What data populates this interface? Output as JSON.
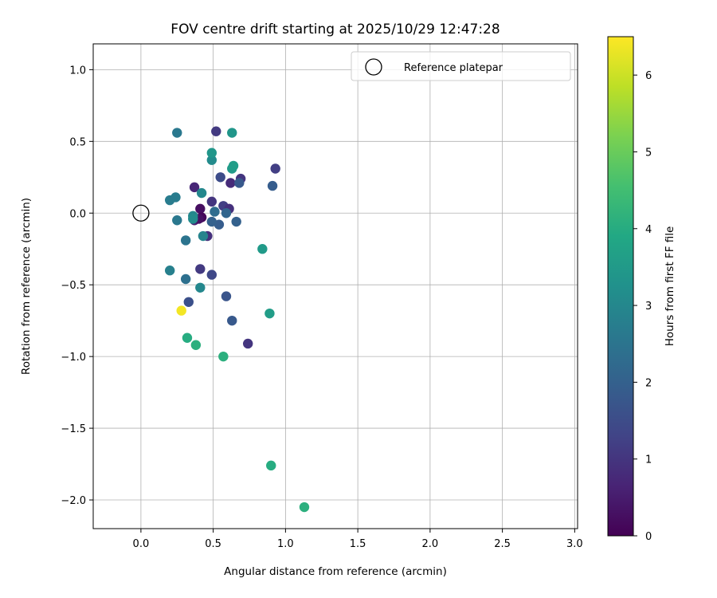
{
  "chart_data": {
    "type": "scatter",
    "title": "FOV centre drift starting at 2025/10/29 12:47:28",
    "xlabel": "Angular distance from reference (arcmin)",
    "ylabel": "Rotation from reference (arcmin)",
    "xlim": [
      -0.33,
      3.02
    ],
    "ylim": [
      -2.2,
      1.18
    ],
    "xticks": [
      0.0,
      0.5,
      1.0,
      1.5,
      2.0,
      2.5,
      3.0
    ],
    "xtick_labels": [
      "0.0",
      "0.5",
      "1.0",
      "1.5",
      "2.0",
      "2.5",
      "3.0"
    ],
    "yticks": [
      1.0,
      0.5,
      0.0,
      -0.5,
      -1.0,
      -1.5,
      -2.0
    ],
    "ytick_labels": [
      "1.0",
      "0.5",
      "0.0",
      "−0.5",
      "−1.0",
      "−1.5",
      "−2.0"
    ],
    "grid": true,
    "legend": {
      "position": "upper-right",
      "entries": [
        "Reference platepar"
      ]
    },
    "reference_point": {
      "x": 0.0,
      "y": 0.0,
      "label": "Reference platepar"
    },
    "colorbar": {
      "label": "Hours from first FF file",
      "min": 0,
      "max": 6.5,
      "colormap": "viridis",
      "ticks": [
        0,
        1,
        2,
        3,
        4,
        5,
        6
      ],
      "tick_labels": [
        "0",
        "1",
        "2",
        "3",
        "4",
        "5",
        "6"
      ]
    },
    "points": [
      {
        "x": 0.41,
        "y": 0.03,
        "hours": 0.25
      },
      {
        "x": 0.42,
        "y": -0.03,
        "hours": 0.1
      },
      {
        "x": 0.37,
        "y": -0.05,
        "hours": 0.6
      },
      {
        "x": 0.4,
        "y": -0.04,
        "hours": 0.3
      },
      {
        "x": 0.37,
        "y": 0.18,
        "hours": 0.7
      },
      {
        "x": 0.46,
        "y": -0.16,
        "hours": 0.9
      },
      {
        "x": 0.49,
        "y": 0.08,
        "hours": 1.0
      },
      {
        "x": 0.57,
        "y": 0.05,
        "hours": 1.2
      },
      {
        "x": 0.61,
        "y": 0.03,
        "hours": 0.9
      },
      {
        "x": 0.62,
        "y": 0.21,
        "hours": 0.8
      },
      {
        "x": 0.69,
        "y": 0.24,
        "hours": 1.0
      },
      {
        "x": 0.41,
        "y": -0.39,
        "hours": 1.1
      },
      {
        "x": 0.74,
        "y": -0.91,
        "hours": 1.0
      },
      {
        "x": 0.52,
        "y": 0.57,
        "hours": 1.1
      },
      {
        "x": 0.93,
        "y": 0.31,
        "hours": 1.2
      },
      {
        "x": 0.49,
        "y": -0.43,
        "hours": 1.4
      },
      {
        "x": 0.33,
        "y": -0.62,
        "hours": 1.6
      },
      {
        "x": 0.55,
        "y": 0.25,
        "hours": 1.5
      },
      {
        "x": 0.68,
        "y": 0.21,
        "hours": 1.8
      },
      {
        "x": 0.91,
        "y": 0.19,
        "hours": 1.9
      },
      {
        "x": 0.59,
        "y": -0.58,
        "hours": 1.7
      },
      {
        "x": 0.63,
        "y": -0.75,
        "hours": 1.8
      },
      {
        "x": 0.54,
        "y": -0.08,
        "hours": 1.9
      },
      {
        "x": 0.49,
        "y": -0.06,
        "hours": 2.0
      },
      {
        "x": 0.59,
        "y": 0.0,
        "hours": 2.1
      },
      {
        "x": 0.51,
        "y": 0.01,
        "hours": 2.3
      },
      {
        "x": 0.66,
        "y": -0.06,
        "hours": 2.0
      },
      {
        "x": 0.31,
        "y": -0.46,
        "hours": 2.4
      },
      {
        "x": 0.31,
        "y": -0.19,
        "hours": 2.5
      },
      {
        "x": 0.25,
        "y": -0.05,
        "hours": 2.6
      },
      {
        "x": 0.25,
        "y": 0.56,
        "hours": 2.6
      },
      {
        "x": 0.2,
        "y": 0.09,
        "hours": 2.7
      },
      {
        "x": 0.24,
        "y": 0.11,
        "hours": 2.7
      },
      {
        "x": 0.2,
        "y": -0.4,
        "hours": 2.8
      },
      {
        "x": 0.43,
        "y": -0.16,
        "hours": 2.9
      },
      {
        "x": 0.36,
        "y": -0.02,
        "hours": 3.0
      },
      {
        "x": 0.36,
        "y": -0.04,
        "hours": 3.1
      },
      {
        "x": 0.42,
        "y": 0.14,
        "hours": 3.0
      },
      {
        "x": 0.49,
        "y": 0.37,
        "hours": 3.1
      },
      {
        "x": 0.41,
        "y": -0.52,
        "hours": 3.0
      },
      {
        "x": 0.49,
        "y": 0.42,
        "hours": 3.4
      },
      {
        "x": 0.63,
        "y": 0.56,
        "hours": 3.4
      },
      {
        "x": 0.63,
        "y": 0.31,
        "hours": 3.5
      },
      {
        "x": 0.64,
        "y": 0.33,
        "hours": 3.6
      },
      {
        "x": 0.84,
        "y": -0.25,
        "hours": 3.5
      },
      {
        "x": 0.89,
        "y": -0.7,
        "hours": 3.6
      },
      {
        "x": 0.32,
        "y": -0.87,
        "hours": 4.0
      },
      {
        "x": 0.38,
        "y": -0.92,
        "hours": 4.1
      },
      {
        "x": 0.57,
        "y": -1.0,
        "hours": 4.1
      },
      {
        "x": 0.9,
        "y": -1.76,
        "hours": 4.0
      },
      {
        "x": 1.13,
        "y": -2.05,
        "hours": 4.1
      },
      {
        "x": 0.28,
        "y": -0.68,
        "hours": 6.4
      }
    ]
  }
}
